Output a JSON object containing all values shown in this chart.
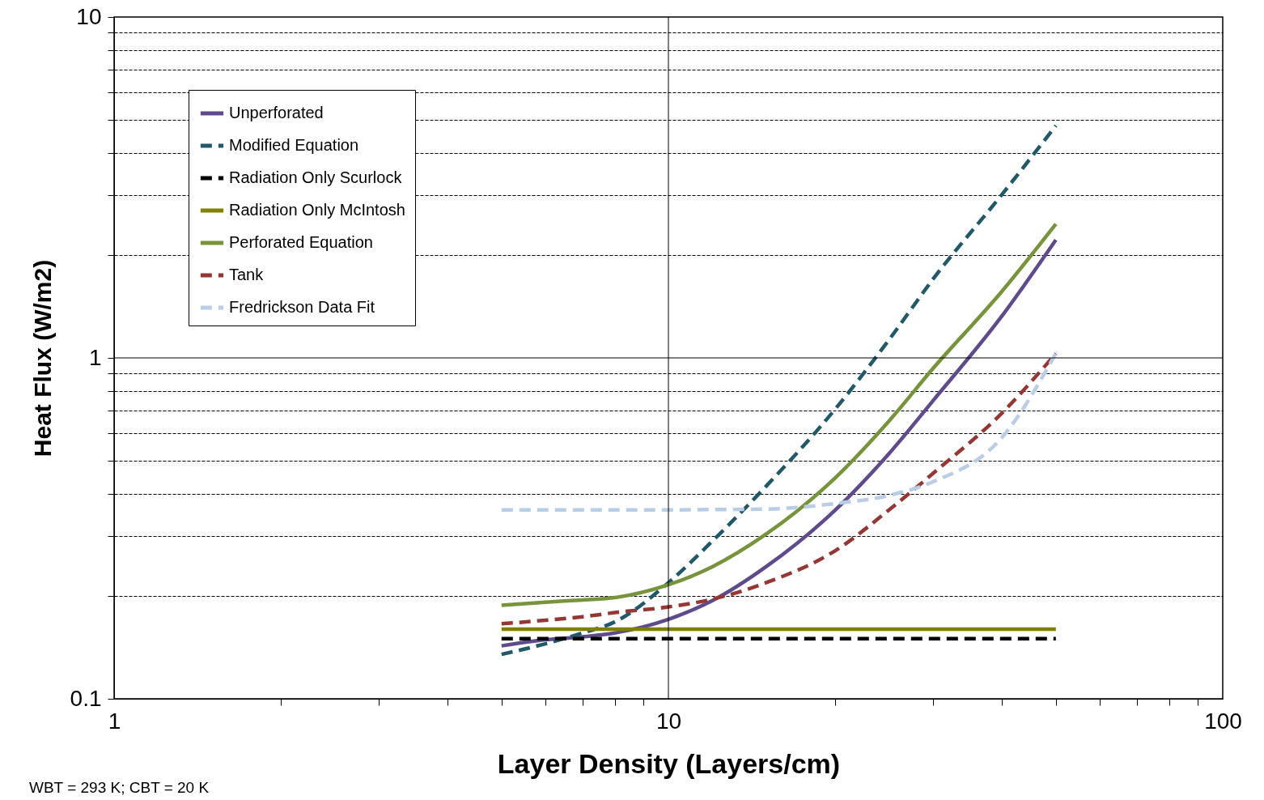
{
  "chart_data": {
    "type": "line",
    "xlabel": "Layer Density (Layers/cm)",
    "ylabel": "Heat Flux (W/m2)",
    "log": "xy",
    "grid": "y",
    "ref_lines": [
      {
        "axis": "x",
        "value": 10,
        "color": "#000000"
      },
      {
        "axis": "y",
        "value": 1,
        "color": "#000000"
      }
    ],
    "legend": "top left",
    "marker": "none",
    "x": [
      5,
      6,
      7,
      8,
      10,
      12,
      15,
      20,
      25,
      30,
      40,
      50
    ],
    "xlim": [
      1,
      100
    ],
    "xticks": [
      1,
      {
        "value": 2,
        "label": null
      },
      {
        "value": 3,
        "label": null
      },
      {
        "value": 4,
        "label": null
      },
      {
        "value": 5,
        "label": null
      },
      {
        "value": 6,
        "label": null
      },
      {
        "value": 7,
        "label": null
      },
      {
        "value": 8,
        "label": null
      },
      {
        "value": 9,
        "label": null
      },
      10,
      {
        "value": 20,
        "label": null
      },
      {
        "value": 30,
        "label": null
      },
      {
        "value": 40,
        "label": null
      },
      {
        "value": 50,
        "label": null
      },
      {
        "value": 60,
        "label": null
      },
      {
        "value": 70,
        "label": null
      },
      {
        "value": 80,
        "label": null
      },
      {
        "value": 90,
        "label": null
      },
      100
    ],
    "ylim": [
      0.1,
      10
    ],
    "yticks": [
      0.1,
      {
        "value": 0.2,
        "label": null
      },
      {
        "value": 0.3,
        "label": null
      },
      {
        "value": 0.4,
        "label": null
      },
      {
        "value": 0.5,
        "label": null
      },
      {
        "value": 0.6,
        "label": null
      },
      {
        "value": 0.7,
        "label": null
      },
      {
        "value": 0.8,
        "label": null
      },
      {
        "value": 0.9,
        "label": null
      },
      1,
      {
        "value": 2,
        "label": null
      },
      {
        "value": 3,
        "label": null
      },
      {
        "value": 4,
        "label": null
      },
      {
        "value": 5,
        "label": null
      },
      {
        "value": 6,
        "label": null
      },
      {
        "value": 7,
        "label": null
      },
      {
        "value": 8,
        "label": null
      },
      {
        "value": 9,
        "label": null
      },
      10
    ],
    "series": [
      {
        "name": "Unperforated",
        "color": "#5f4b8b",
        "line_style": "solid",
        "values": [
          0.143,
          0.149,
          0.152,
          0.156,
          0.171,
          0.194,
          0.244,
          0.358,
          0.524,
          0.748,
          1.33,
          2.22
        ]
      },
      {
        "name": "Modified Equation",
        "color": "#215968",
        "line_style": "dashed",
        "values": [
          0.135,
          0.145,
          0.156,
          0.168,
          0.219,
          0.29,
          0.42,
          0.708,
          1.13,
          1.7,
          3.02,
          4.8
        ]
      },
      {
        "name": "Radiation Only Scurlock",
        "color": "#000000",
        "line_style": "dashed",
        "values": [
          0.15,
          0.15,
          0.15,
          0.15,
          0.15,
          0.15,
          0.15,
          0.15,
          0.15,
          0.15,
          0.15,
          0.15
        ]
      },
      {
        "name": "Radiation Only McIntosh",
        "color": "#808000",
        "line_style": "solid",
        "values": [
          0.16,
          0.16,
          0.16,
          0.16,
          0.16,
          0.16,
          0.16,
          0.16,
          0.16,
          0.16,
          0.16,
          0.16
        ]
      },
      {
        "name": "Perforated Equation",
        "color": "#77933c",
        "line_style": "solid",
        "values": [
          0.188,
          0.192,
          0.195,
          0.198,
          0.216,
          0.244,
          0.304,
          0.445,
          0.653,
          0.93,
          1.57,
          2.47
        ]
      },
      {
        "name": "Tank",
        "color": "#953735",
        "line_style": "dashed",
        "values": [
          0.166,
          0.17,
          0.174,
          0.179,
          0.186,
          0.196,
          0.219,
          0.272,
          0.358,
          0.458,
          0.69,
          1.03
        ]
      },
      {
        "name": "Fredrickson Data Fit",
        "color": "#b9cde5",
        "line_style": "dashed",
        "values": [
          0.358,
          0.358,
          0.358,
          0.358,
          0.358,
          0.359,
          0.36,
          0.374,
          0.395,
          0.433,
          0.585,
          1.03
        ]
      }
    ],
    "annotations": [
      "WBT = 293 K; CBT = 20 K"
    ]
  }
}
